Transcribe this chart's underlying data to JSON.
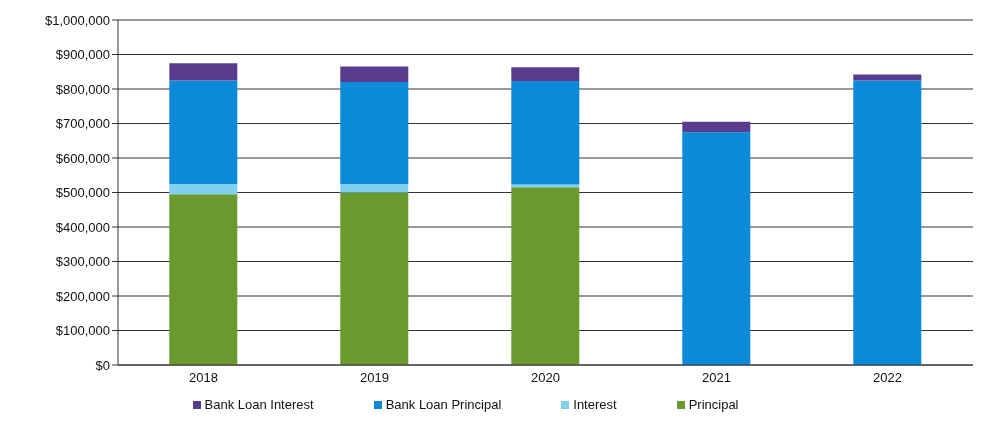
{
  "chart_data": {
    "type": "bar",
    "stacked": true,
    "categories": [
      "2018",
      "2019",
      "2020",
      "2021",
      "2022"
    ],
    "series": [
      {
        "name": "Principal",
        "color": "#6a9a2e",
        "values": [
          495000,
          500000,
          515000,
          0,
          0
        ]
      },
      {
        "name": "Interest",
        "color": "#7fd0f0",
        "values": [
          30000,
          25000,
          8000,
          0,
          0
        ]
      },
      {
        "name": "Bank Loan Principal",
        "color": "#0a8ad8",
        "values": [
          300000,
          295000,
          300000,
          675000,
          825000
        ]
      },
      {
        "name": "Bank Loan Interest",
        "color": "#5a3c8f",
        "values": [
          50000,
          45000,
          40000,
          30000,
          17000
        ]
      }
    ],
    "ylim": [
      0,
      1000000
    ],
    "yticks": [
      {
        "value": 0,
        "label": "$0"
      },
      {
        "value": 100000,
        "label": "$100,000"
      },
      {
        "value": 200000,
        "label": "$200,000"
      },
      {
        "value": 300000,
        "label": "$300,000"
      },
      {
        "value": 400000,
        "label": "$400,000"
      },
      {
        "value": 500000,
        "label": "$500,000"
      },
      {
        "value": 600000,
        "label": "$600,000"
      },
      {
        "value": 700000,
        "label": "$700,000"
      },
      {
        "value": 800000,
        "label": "$800,000"
      },
      {
        "value": 900000,
        "label": "$900,000"
      },
      {
        "value": 1000000,
        "label": "$1,000,000"
      }
    ],
    "grid": "y",
    "legend": "bottom"
  }
}
